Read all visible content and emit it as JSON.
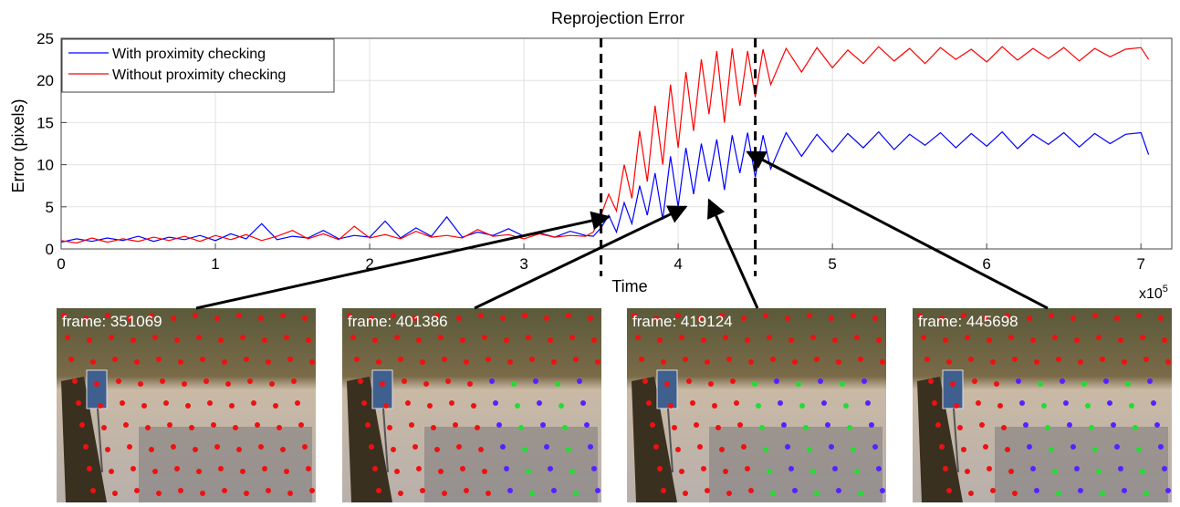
{
  "chart_data": {
    "type": "line",
    "title": "Reprojection Error",
    "xlabel": "Time",
    "ylabel": "Error (pixels)",
    "x_multiplier": {
      "base": "x10",
      "exponent": "5"
    },
    "x": [
      0,
      0.1,
      0.2,
      0.3,
      0.4,
      0.5,
      0.6,
      0.7,
      0.8,
      0.9,
      1.0,
      1.1,
      1.2,
      1.3,
      1.4,
      1.5,
      1.6,
      1.7,
      1.8,
      1.9,
      2.0,
      2.1,
      2.2,
      2.3,
      2.4,
      2.5,
      2.6,
      2.7,
      2.8,
      2.9,
      3.0,
      3.1,
      3.2,
      3.3,
      3.4,
      3.45,
      3.5,
      3.55,
      3.6,
      3.65,
      3.7,
      3.75,
      3.8,
      3.85,
      3.9,
      3.95,
      4.0,
      4.05,
      4.1,
      4.15,
      4.2,
      4.25,
      4.3,
      4.35,
      4.4,
      4.45,
      4.5,
      4.55,
      4.6,
      4.7,
      4.8,
      4.9,
      5.0,
      5.1,
      5.2,
      5.3,
      5.4,
      5.5,
      5.6,
      5.7,
      5.8,
      5.9,
      6.0,
      6.1,
      6.2,
      6.3,
      6.4,
      6.5,
      6.6,
      6.7,
      6.8,
      6.9,
      7.0,
      7.05
    ],
    "series": [
      {
        "name": "With proximity checking",
        "color": "#0000ff",
        "values": [
          0.8,
          1.2,
          0.9,
          1.3,
          1.0,
          1.5,
          0.9,
          1.4,
          1.1,
          1.6,
          1.0,
          1.8,
          1.2,
          3.0,
          1.1,
          1.5,
          1.3,
          2.2,
          1.2,
          1.6,
          1.4,
          3.3,
          1.3,
          2.5,
          1.5,
          3.8,
          1.4,
          2.0,
          1.6,
          2.4,
          1.5,
          1.9,
          1.4,
          2.1,
          1.6,
          1.5,
          2.5,
          4.0,
          2.0,
          5.5,
          3.0,
          7.5,
          4.0,
          9.0,
          3.5,
          11.0,
          5.0,
          12.0,
          6.5,
          12.5,
          8.0,
          13.0,
          7.0,
          13.5,
          9.0,
          13.8,
          8.5,
          13.5,
          9.5,
          13.8,
          11.0,
          13.6,
          11.5,
          13.7,
          12.0,
          13.9,
          11.8,
          13.6,
          12.3,
          13.8,
          12.0,
          13.7,
          12.2,
          13.9,
          11.9,
          13.6,
          12.4,
          13.8,
          12.1,
          13.7,
          12.5,
          13.6,
          13.8,
          11.2
        ]
      },
      {
        "name": "Without proximity checking",
        "color": "#ff0000",
        "values": [
          1.0,
          0.7,
          1.3,
          0.8,
          1.2,
          0.9,
          1.4,
          1.0,
          1.5,
          0.9,
          1.6,
          1.1,
          1.7,
          1.0,
          1.5,
          2.2,
          1.2,
          1.8,
          1.1,
          2.7,
          1.3,
          1.7,
          1.2,
          2.1,
          1.4,
          1.6,
          1.3,
          2.3,
          1.5,
          1.7,
          1.2,
          1.8,
          1.4,
          1.6,
          1.5,
          2.0,
          4.0,
          6.5,
          4.5,
          10.0,
          6.0,
          14.0,
          8.0,
          17.0,
          10.0,
          19.5,
          12.0,
          21.0,
          14.0,
          22.5,
          16.0,
          23.5,
          15.0,
          23.8,
          17.0,
          23.5,
          18.0,
          23.7,
          19.5,
          23.8,
          21.0,
          23.9,
          21.5,
          23.6,
          22.0,
          24.0,
          22.3,
          23.8,
          22.0,
          23.9,
          22.5,
          23.7,
          22.2,
          24.0,
          22.4,
          23.8,
          22.6,
          23.9,
          22.3,
          23.8,
          22.8,
          23.7,
          23.9,
          22.5
        ]
      }
    ],
    "xlim": [
      0,
      7.2
    ],
    "ylim": [
      0,
      25
    ],
    "xticks": [
      0,
      1,
      2,
      3,
      4,
      5,
      6,
      7
    ],
    "yticks": [
      0,
      5,
      10,
      15,
      20,
      25
    ],
    "grid": true,
    "legend": "upper left",
    "vlines": [
      3.5,
      4.5
    ],
    "frames": [
      {
        "label": "frame: 351069",
        "x": 3.55,
        "y": 3.8
      },
      {
        "label": "frame: 401386",
        "x": 4.05,
        "y": 5.0
      },
      {
        "label": "frame: 419124",
        "x": 4.2,
        "y": 5.8
      },
      {
        "label": "frame: 445698",
        "x": 4.45,
        "y": 11.5
      }
    ]
  }
}
